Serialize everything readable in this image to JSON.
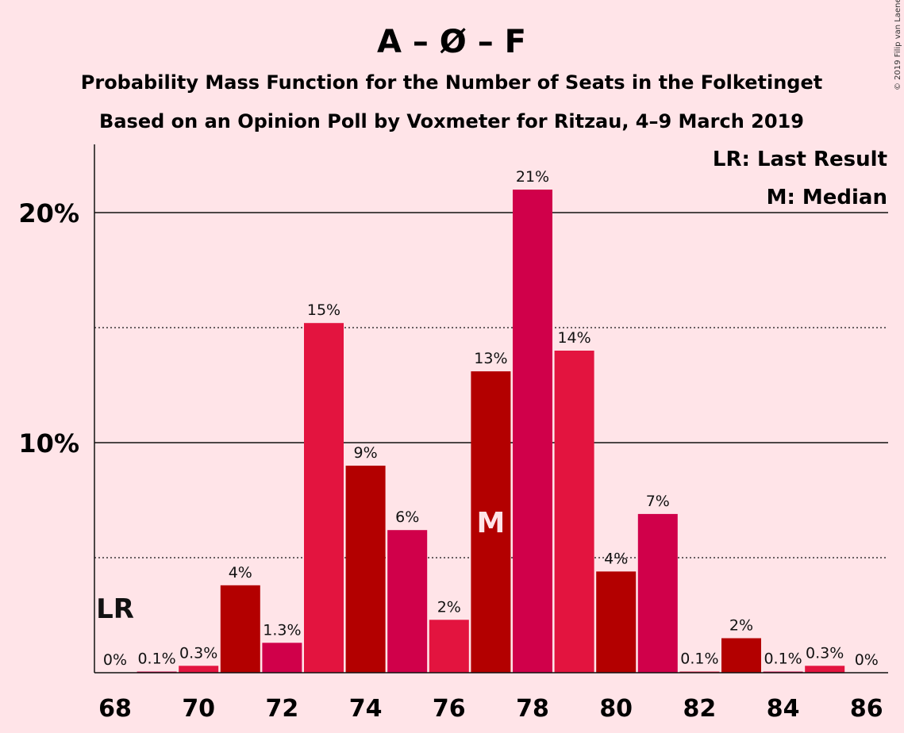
{
  "chart_data": {
    "type": "bar",
    "title": "A – Ø – F",
    "subtitle_1": "Probability Mass Function for the Number of Seats in the Folketinget",
    "subtitle_2": "Based on an Opinion Poll by Voxmeter for Ritzau, 4–9 March 2019",
    "copyright": "© 2019 Filip van Laenen",
    "legend": [
      "LR: Last Result",
      "M: Median"
    ],
    "x": [
      68,
      69,
      70,
      71,
      72,
      73,
      74,
      75,
      76,
      77,
      78,
      79,
      80,
      81,
      82,
      83,
      84,
      85,
      86
    ],
    "values": [
      0,
      0.05,
      0.3,
      3.8,
      1.3,
      15.2,
      9.0,
      6.2,
      2.3,
      13.1,
      21.0,
      14.0,
      4.4,
      6.9,
      0.05,
      1.5,
      0.05,
      0.3,
      0
    ],
    "labels": [
      "0%",
      "0.1%",
      "0.3%",
      "4%",
      "1.3%",
      "15%",
      "9%",
      "6%",
      "2%",
      "13%",
      "21%",
      "14%",
      "4%",
      "7%",
      "0.1%",
      "2%",
      "0.1%",
      "0.3%",
      "0%"
    ],
    "x_ticks": [
      "68",
      "70",
      "72",
      "74",
      "76",
      "78",
      "80",
      "82",
      "84",
      "86"
    ],
    "y_ticks": [
      "10%",
      "20%"
    ],
    "ylim": [
      0,
      23
    ],
    "last_result_seat": 68,
    "last_result_marker": "LR",
    "median_seat": 77,
    "median_marker": "M",
    "colors": [
      "#b30000",
      "#d0004a",
      "#e3143f"
    ],
    "grid": "solid at 10% and 20%, dotted at 5% and 15%"
  }
}
